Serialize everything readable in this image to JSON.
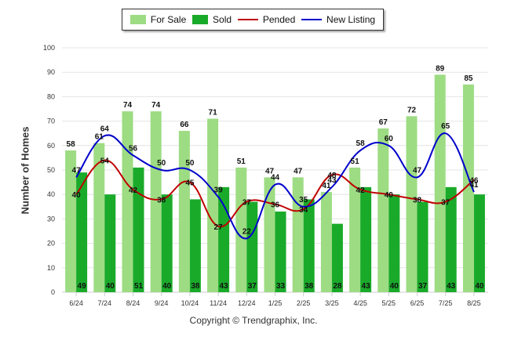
{
  "legend": {
    "for_sale": "For Sale",
    "sold": "Sold",
    "pended": "Pended",
    "new_listing": "New Listing"
  },
  "footer": "Copyright © Trendgraphix, Inc.",
  "colors": {
    "for_sale": "#9ddc83",
    "sold": "#1aaa2a",
    "pended": "#c00000",
    "new_listing": "#0000cc"
  },
  "chart_data": {
    "type": "bar",
    "ylabel": "Number of Homes",
    "ylim": [
      0,
      100
    ],
    "yticks": [
      0,
      10,
      20,
      30,
      40,
      50,
      60,
      70,
      80,
      90,
      100
    ],
    "grid": true,
    "legend_position": "top-center",
    "categories": [
      "6/24",
      "7/24",
      "8/24",
      "9/24",
      "10/24",
      "11/24",
      "12/24",
      "1/25",
      "2/25",
      "3/25",
      "4/25",
      "5/25",
      "6/25",
      "7/25",
      "8/25"
    ],
    "series": [
      {
        "name": "For Sale",
        "type": "bar",
        "values": [
          58,
          61,
          74,
          74,
          66,
          71,
          51,
          47,
          47,
          41,
          51,
          67,
          72,
          89,
          85
        ]
      },
      {
        "name": "Sold",
        "type": "bar",
        "values": [
          49,
          40,
          51,
          40,
          38,
          43,
          37,
          33,
          38,
          28,
          43,
          40,
          37,
          43,
          40
        ]
      },
      {
        "name": "Pended",
        "type": "line",
        "values": [
          40,
          54,
          42,
          38,
          45,
          27,
          37,
          36,
          34,
          48,
          42,
          40,
          38,
          37,
          46
        ]
      },
      {
        "name": "New Listing",
        "type": "line",
        "values": [
          47,
          64,
          56,
          50,
          50,
          39,
          22,
          44,
          35,
          43,
          58,
          60,
          47,
          65,
          41
        ]
      }
    ]
  }
}
